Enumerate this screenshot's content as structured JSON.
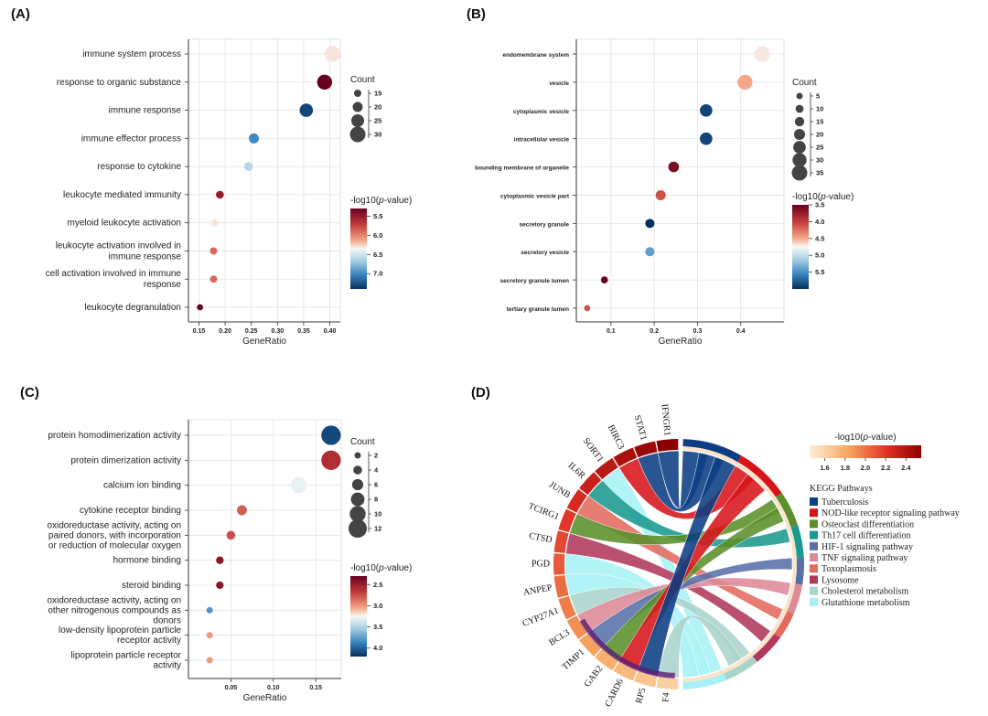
{
  "panels": {
    "A": "(A)",
    "B": "(B)",
    "C": "(C)",
    "D": "(D)"
  },
  "legend_labels": {
    "count": "Count",
    "pvalue_prefix": "-log10(",
    "pvalue_p": "p",
    "pvalue_suffix": "-value)"
  },
  "chart_data": [
    {
      "id": "A",
      "type": "scatter",
      "xlabel": "GeneRatio",
      "xlim": [
        0.13,
        0.42
      ],
      "xticks": [
        0.15,
        0.2,
        0.25,
        0.3,
        0.35,
        0.4
      ],
      "xtick_labels": [
        "0.15",
        "0.20",
        "0.25",
        "0.30",
        "0.35",
        "0.40"
      ],
      "categories": [
        "immune system process",
        "response to organic substance",
        "immune response",
        "immune effector process",
        "response to cytokine",
        "leukocyte mediated immunity",
        "myeloid leukocyte activation",
        [
          "leukocyte activation involved in",
          "immune response"
        ],
        [
          "cell activation involved in immune",
          "response"
        ],
        "leukocyte degranulation"
      ],
      "gene_ratio": [
        0.405,
        0.39,
        0.355,
        0.255,
        0.245,
        0.19,
        0.18,
        0.178,
        0.178,
        0.152
      ],
      "count": [
        31,
        29,
        26,
        20,
        18,
        16,
        15,
        15,
        15,
        13
      ],
      "neg_log10_p": [
        6.3,
        5.3,
        7.3,
        7.0,
        6.6,
        5.5,
        6.3,
        5.9,
        5.9,
        5.3
      ],
      "size_legend": {
        "values": [
          15,
          20,
          25,
          30
        ],
        "labels": [
          "15",
          "20",
          "25",
          "30"
        ]
      },
      "color_range": [
        5.3,
        7.4
      ],
      "colorbar_ticks": {
        "values": [
          5.5,
          6.0,
          6.5,
          7.0
        ],
        "labels": [
          "5.5",
          "6.0",
          "6.5",
          "7.0"
        ]
      },
      "grid": true
    },
    {
      "id": "B",
      "type": "scatter",
      "xlabel": "GeneRatio",
      "xlim": [
        0.02,
        0.5
      ],
      "xticks": [
        0.1,
        0.2,
        0.3,
        0.4
      ],
      "xtick_labels": [
        "0.1",
        "0.2",
        "0.3",
        "0.4"
      ],
      "categories": [
        "endomembrane system",
        "vesicle",
        "cytoplasmic vesicle",
        "intracellular vesicle",
        "bounding membrane of organelle",
        "cytoplasmic vesicle part",
        "secretory granule",
        "secretory vesicle",
        "secretory granule lumen",
        "tertiary granule lumen"
      ],
      "gene_ratio": [
        0.45,
        0.41,
        0.32,
        0.32,
        0.245,
        0.215,
        0.19,
        0.19,
        0.085,
        0.045
      ],
      "count": [
        36,
        33,
        25,
        25,
        19,
        17,
        14,
        14,
        7,
        4
      ],
      "neg_log10_p": [
        4.7,
        4.5,
        5.9,
        5.9,
        3.6,
        4.1,
        6.0,
        5.4,
        3.5,
        4.1
      ],
      "size_legend": {
        "values": [
          5,
          10,
          15,
          20,
          25,
          30,
          35
        ],
        "labels": [
          "5",
          "10",
          "15",
          "20",
          "25",
          "30",
          "35"
        ]
      },
      "color_range": [
        3.5,
        6.0
      ],
      "colorbar_ticks": {
        "values": [
          3.5,
          4.0,
          4.5,
          5.0,
          5.5
        ],
        "labels": [
          "3.5",
          "4.0",
          "4.5",
          "5.0",
          "5.5"
        ]
      },
      "grid": true
    },
    {
      "id": "C",
      "type": "scatter",
      "xlabel": "GeneRatio",
      "xlim": [
        0.0,
        0.18
      ],
      "xticks": [
        0.05,
        0.1,
        0.15
      ],
      "xtick_labels": [
        "0.05",
        "0.10",
        "0.15"
      ],
      "categories": [
        "protein homodimerization activity",
        "protein dimerization activity",
        "calcium ion binding",
        "cytokine receptor binding",
        [
          "oxidoreductase activity, acting on",
          "paired donors, with incorporation",
          "or reduction of molecular oxygen"
        ],
        "hormone binding",
        "steroid binding",
        [
          "oxidoreductase activity, acting on",
          "other nitrogenous compounds as",
          "donors"
        ],
        [
          "low-density lipoprotein particle",
          "receptor activity"
        ],
        [
          "lipoprotein particle receptor",
          "activity"
        ]
      ],
      "gene_ratio": [
        0.168,
        0.168,
        0.13,
        0.063,
        0.05,
        0.037,
        0.037,
        0.025,
        0.025,
        0.025
      ],
      "count": [
        13,
        13,
        10,
        5,
        4,
        3,
        3,
        2,
        2,
        2
      ],
      "neg_log10_p": [
        4.1,
        2.6,
        3.3,
        2.8,
        2.75,
        2.45,
        2.45,
        3.8,
        3.0,
        3.0
      ],
      "size_legend": {
        "values": [
          2,
          4,
          6,
          8,
          10,
          12
        ],
        "labels": [
          "2",
          "4",
          "6",
          "8",
          "10",
          "12"
        ]
      },
      "color_range": [
        2.3,
        4.2
      ],
      "colorbar_ticks": {
        "values": [
          2.5,
          3.0,
          3.5,
          4.0
        ],
        "labels": [
          "2.5",
          "3.0",
          "3.5",
          "4.0"
        ]
      },
      "grid": true
    },
    {
      "id": "D",
      "type": "chord",
      "genes": [
        "IFNGR1",
        "STAT1",
        "BIRC3",
        "SORT1",
        "IL6R",
        "JUNB",
        "TCIRG1",
        "CTSD",
        "PGD",
        "ANPEP",
        "CYP27A1",
        "BCL3",
        "TIMP1",
        "GAB2",
        "CARD6",
        "RP5",
        "F4"
      ],
      "colorbar_label_prefix": "-log10(",
      "colorbar_label_p": "p",
      "colorbar_label_suffix": "-value)",
      "colorbar_ticks": {
        "values": [
          1.6,
          1.8,
          2.0,
          2.2,
          2.4
        ],
        "labels": [
          "1.6",
          "1.8",
          "2.0",
          "2.2",
          "2.4"
        ]
      },
      "color_range": [
        1.45,
        2.55
      ],
      "legend_title": "KEGG Pathways",
      "pathways": [
        {
          "name": "Tuberculosis",
          "color": "#0d3d84"
        },
        {
          "name": "NOD-like receptor signaling pathway",
          "color": "#d7141a"
        },
        {
          "name": "Osteoclast differentiation",
          "color": "#5a8f29"
        },
        {
          "name": "Th17 cell differentiation",
          "color": "#1a9a8f"
        },
        {
          "name": "HIF-1 signaling pathway",
          "color": "#5a6faa"
        },
        {
          "name": "TNF signaling pathway",
          "color": "#dd8a97"
        },
        {
          "name": "Toxoplasmosis",
          "color": "#e26a5f"
        },
        {
          "name": "Lysosome",
          "color": "#b0385c"
        },
        {
          "name": "Cholesterol metabolism",
          "color": "#a8d4cc"
        },
        {
          "name": "Glutathione metabolism",
          "color": "#a7f1f6"
        }
      ],
      "links": [
        [
          "IFNGR1",
          0
        ],
        [
          "STAT1",
          0
        ],
        [
          "BIRC3",
          1
        ],
        [
          "SORT1",
          9
        ],
        [
          "IL6R",
          3
        ],
        [
          "JUNB",
          6
        ],
        [
          "TCIRG1",
          2
        ],
        [
          "CTSD",
          7
        ],
        [
          "PGD",
          9
        ],
        [
          "ANPEP",
          9
        ],
        [
          "CYP27A1",
          8
        ],
        [
          "BCL3",
          5
        ],
        [
          "TIMP1",
          4
        ],
        [
          "GAB2",
          2
        ],
        [
          "CARD6",
          1
        ],
        [
          "RP5",
          0
        ],
        [
          "F4",
          8
        ]
      ]
    }
  ]
}
